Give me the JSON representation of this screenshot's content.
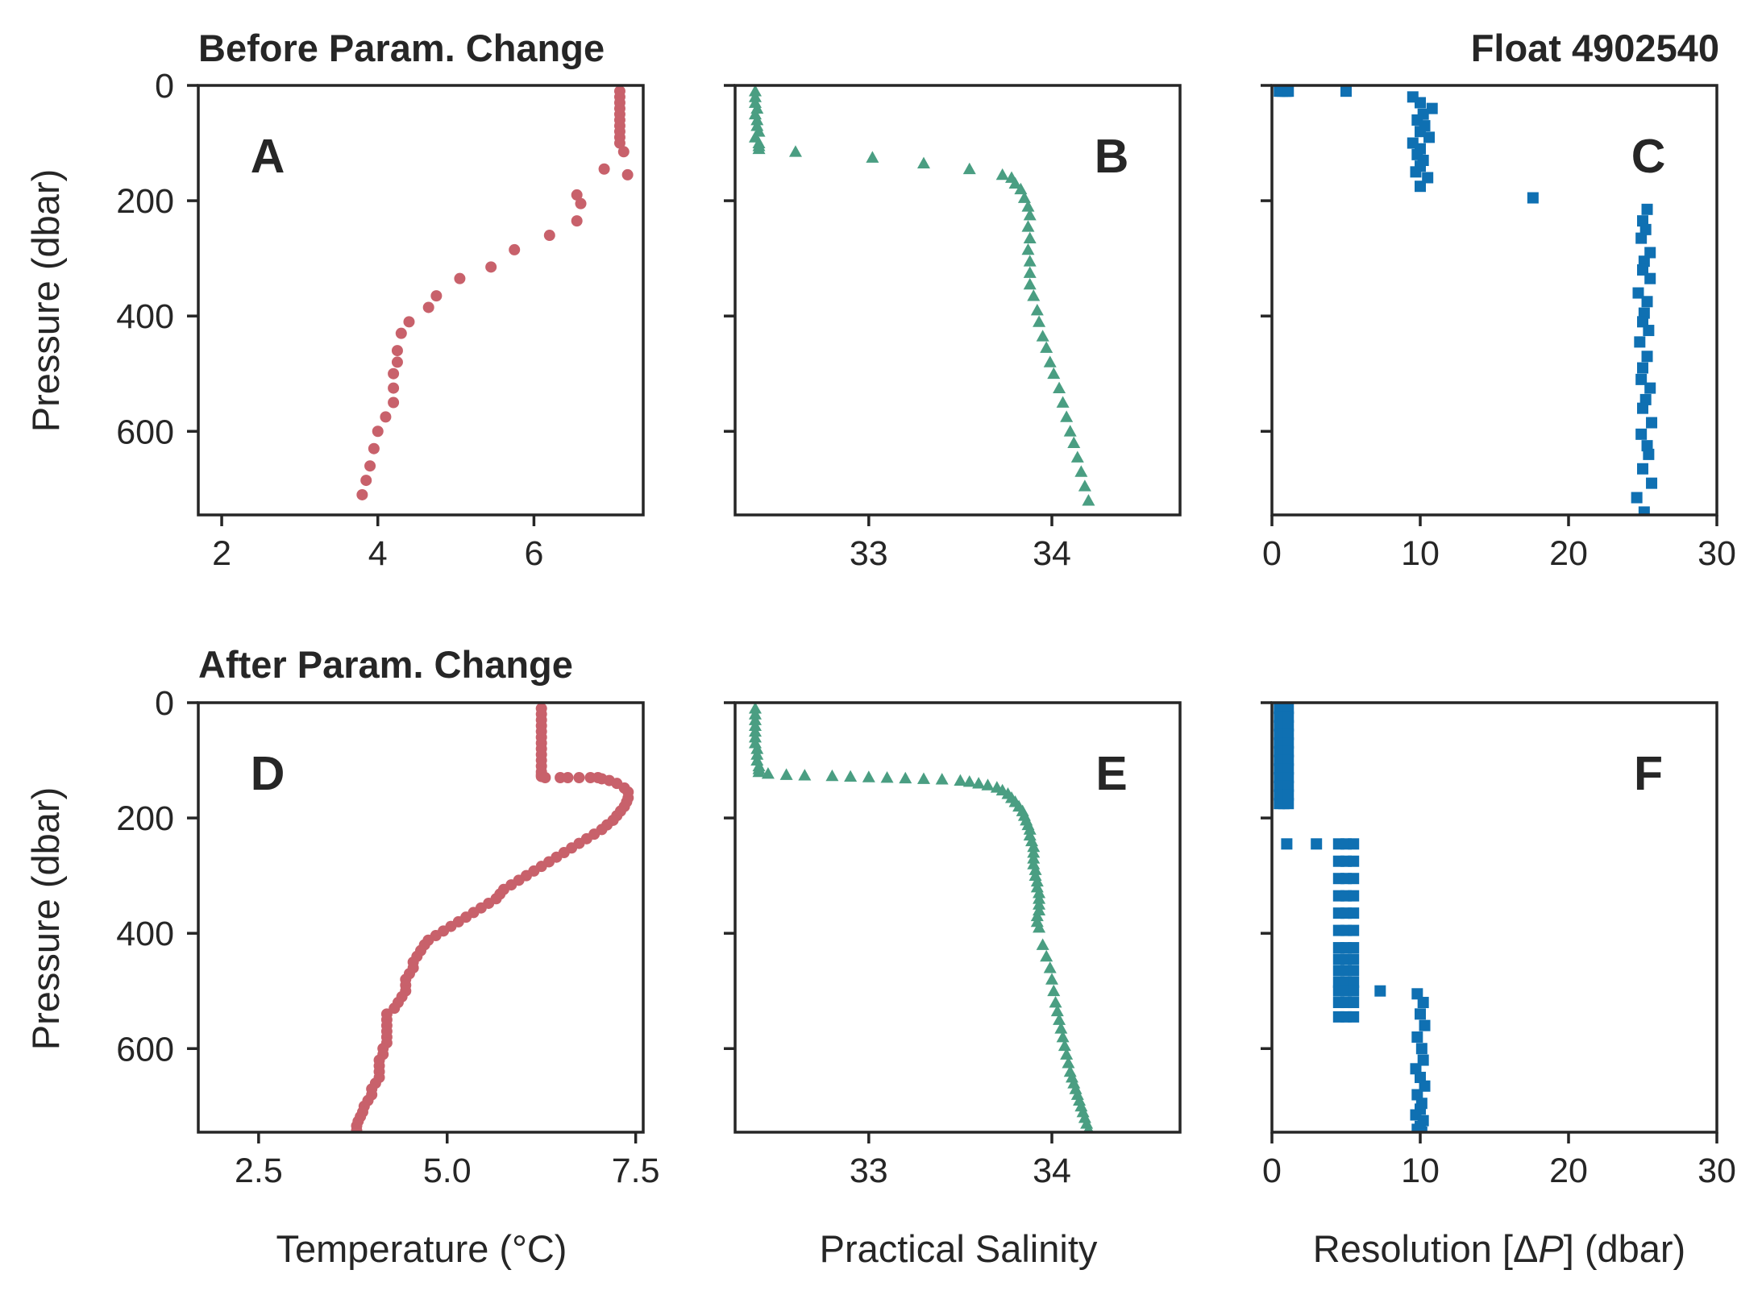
{
  "figure": {
    "top_left_title": "Before Param. Change",
    "top_right_title": "Float 4902540",
    "bottom_left_title": "After Param. Change"
  },
  "colors": {
    "temperature": "#c8616b",
    "salinity": "#4a9e82",
    "resolution": "#0f70b2",
    "axes": "#262626"
  },
  "markers": {
    "temperature": "circle",
    "salinity": "triangle",
    "resolution": "square"
  },
  "ylabel": "Pressure (dbar)",
  "xlabels": {
    "col1": "Temperature (°C)",
    "col2": "Practical Salinity",
    "col3_prefix": "Resolution [Δ",
    "col3_var": "P",
    "col3_suffix": "] (dbar)"
  },
  "chart_data": [
    {
      "id": "A",
      "panel_label": "A",
      "type": "scatter",
      "variable": "temperature",
      "xlim": [
        1.7,
        7.4
      ],
      "ylim": [
        745,
        0
      ],
      "y_inverted": true,
      "xticks": [
        2,
        4,
        6
      ],
      "xtick_labels": [
        "2",
        "4",
        "6"
      ],
      "yticks": [
        0,
        200,
        400,
        600
      ],
      "ytick_labels": [
        "0",
        "200",
        "400",
        "600"
      ],
      "x": [
        7.1,
        7.1,
        7.1,
        7.1,
        7.1,
        7.1,
        7.1,
        7.1,
        7.1,
        7.1,
        7.15,
        6.9,
        7.2,
        6.55,
        6.6,
        6.55,
        6.2,
        5.75,
        5.45,
        5.05,
        4.75,
        4.65,
        4.4,
        4.3,
        4.25,
        4.25,
        4.2,
        4.2,
        4.2,
        4.1,
        4.0,
        3.95,
        3.9,
        3.85,
        3.8
      ],
      "y": [
        10,
        20,
        30,
        40,
        50,
        60,
        70,
        80,
        90,
        100,
        115,
        145,
        155,
        190,
        205,
        235,
        260,
        285,
        315,
        335,
        365,
        385,
        410,
        430,
        460,
        480,
        500,
        525,
        550,
        575,
        600,
        630,
        660,
        685,
        710
      ]
    },
    {
      "id": "B",
      "panel_label": "B",
      "type": "scatter",
      "variable": "salinity",
      "xlim": [
        32.27,
        34.7
      ],
      "ylim": [
        745,
        0
      ],
      "y_inverted": true,
      "xticks": [
        33,
        34
      ],
      "xtick_labels": [
        "33",
        "34"
      ],
      "yticks": [
        0,
        200,
        400,
        600
      ],
      "ytick_labels": [
        "",
        "",
        "",
        ""
      ],
      "x": [
        32.38,
        32.38,
        32.38,
        32.39,
        32.38,
        32.39,
        32.39,
        32.4,
        32.38,
        32.4,
        32.4,
        32.4,
        32.6,
        33.02,
        33.3,
        33.55,
        33.73,
        33.78,
        33.8,
        33.83,
        33.85,
        33.87,
        33.88,
        33.87,
        33.88,
        33.87,
        33.88,
        33.88,
        33.88,
        33.9,
        33.92,
        33.93,
        33.95,
        33.97,
        33.99,
        34.01,
        34.04,
        34.06,
        34.08,
        34.1,
        34.12,
        34.14,
        34.16,
        34.18,
        34.2
      ],
      "y": [
        10,
        20,
        30,
        40,
        50,
        60,
        70,
        80,
        90,
        100,
        105,
        110,
        115,
        125,
        135,
        145,
        155,
        160,
        170,
        180,
        195,
        210,
        225,
        245,
        265,
        285,
        305,
        325,
        345,
        365,
        390,
        410,
        435,
        455,
        480,
        500,
        525,
        550,
        575,
        600,
        620,
        645,
        670,
        695,
        720
      ]
    },
    {
      "id": "C",
      "panel_label": "C",
      "type": "scatter",
      "variable": "resolution",
      "xlim": [
        0,
        30
      ],
      "ylim": [
        745,
        0
      ],
      "y_inverted": true,
      "xticks": [
        0,
        10,
        20,
        30
      ],
      "xtick_labels": [
        "0",
        "10",
        "20",
        "30"
      ],
      "yticks": [
        0,
        200,
        400,
        600
      ],
      "ytick_labels": [
        "",
        "",
        "",
        ""
      ],
      "x": [
        0.5,
        0.7,
        0.9,
        1.0,
        1.1,
        5.0,
        9.5,
        10.0,
        10.8,
        10.2,
        9.8,
        10.3,
        10.0,
        10.6,
        9.5,
        10.0,
        9.8,
        10.2,
        10.0,
        9.7,
        10.5,
        10.0,
        17.6,
        25.3,
        25.0,
        25.2,
        24.9,
        25.5,
        25.1,
        25.0,
        25.5,
        24.7,
        25.3,
        25.1,
        25.0,
        25.4,
        24.8,
        25.3,
        25.0,
        24.9,
        25.5,
        25.2,
        25.0,
        25.6,
        24.9,
        25.3,
        25.4,
        25.0,
        25.6,
        24.6,
        25.1
      ],
      "y": [
        10,
        10,
        10,
        10,
        10,
        10,
        20,
        30,
        40,
        50,
        60,
        70,
        80,
        90,
        100,
        110,
        120,
        130,
        140,
        150,
        160,
        175,
        195,
        215,
        235,
        250,
        265,
        290,
        305,
        320,
        335,
        360,
        375,
        395,
        410,
        425,
        445,
        470,
        490,
        510,
        525,
        545,
        560,
        585,
        605,
        625,
        640,
        665,
        690,
        715,
        740
      ]
    },
    {
      "id": "D",
      "panel_label": "D",
      "type": "scatter",
      "variable": "temperature",
      "xlim": [
        1.7,
        7.6
      ],
      "ylim": [
        745,
        0
      ],
      "y_inverted": true,
      "xticks": [
        2.5,
        5.0,
        7.5
      ],
      "xtick_labels": [
        "2.5",
        "5.0",
        "7.5"
      ],
      "yticks": [
        0,
        200,
        400,
        600
      ],
      "ytick_labels": [
        "0",
        "200",
        "400",
        "600"
      ],
      "x": [
        6.25,
        6.25,
        6.25,
        6.25,
        6.25,
        6.25,
        6.25,
        6.25,
        6.25,
        6.25,
        6.25,
        6.25,
        6.25,
        6.25,
        6.3,
        6.5,
        6.6,
        6.75,
        6.9,
        7.0,
        7.05,
        7.15,
        7.25,
        7.35,
        7.4,
        7.4,
        7.38,
        7.35,
        7.3,
        7.25,
        7.2,
        7.12,
        7.05,
        6.95,
        6.85,
        6.75,
        6.65,
        6.55,
        6.45,
        6.35,
        6.25,
        6.15,
        6.05,
        5.95,
        5.85,
        5.75,
        5.7,
        5.65,
        5.55,
        5.45,
        5.35,
        5.25,
        5.15,
        5.05,
        4.95,
        4.85,
        4.75,
        4.7,
        4.65,
        4.6,
        4.55,
        4.55,
        4.5,
        4.45,
        4.45,
        4.45,
        4.4,
        4.35,
        4.3,
        4.2,
        4.2,
        4.2,
        4.2,
        4.2,
        4.2,
        4.15,
        4.15,
        4.1,
        4.1,
        4.1,
        4.1,
        4.05,
        4.0,
        4.0,
        3.95,
        3.9,
        3.88,
        3.85,
        3.82,
        3.8,
        3.8
      ],
      "y": [
        10,
        20,
        30,
        40,
        50,
        60,
        70,
        80,
        90,
        100,
        110,
        120,
        125,
        128,
        130,
        130,
        130,
        130,
        130,
        130,
        132,
        135,
        140,
        148,
        155,
        165,
        172,
        180,
        188,
        196,
        204,
        212,
        220,
        228,
        236,
        244,
        252,
        260,
        268,
        276,
        284,
        292,
        300,
        308,
        316,
        324,
        332,
        340,
        348,
        356,
        364,
        372,
        380,
        388,
        396,
        404,
        412,
        420,
        430,
        440,
        450,
        460,
        470,
        480,
        490,
        500,
        510,
        520,
        530,
        540,
        550,
        560,
        570,
        580,
        590,
        600,
        610,
        620,
        630,
        640,
        650,
        660,
        670,
        680,
        690,
        700,
        710,
        718,
        726,
        734,
        742
      ]
    },
    {
      "id": "E",
      "panel_label": "E",
      "type": "scatter",
      "variable": "salinity",
      "xlim": [
        32.27,
        34.7
      ],
      "ylim": [
        745,
        0
      ],
      "y_inverted": true,
      "xticks": [
        33,
        34
      ],
      "xtick_labels": [
        "33",
        "34"
      ],
      "yticks": [
        0,
        200,
        400,
        600
      ],
      "ytick_labels": [
        "",
        "",
        "",
        ""
      ],
      "x": [
        32.38,
        32.38,
        32.38,
        32.38,
        32.38,
        32.38,
        32.38,
        32.39,
        32.39,
        32.39,
        32.4,
        32.4,
        32.4,
        32.45,
        32.55,
        32.65,
        32.8,
        32.9,
        33.0,
        33.1,
        33.2,
        33.3,
        33.4,
        33.5,
        33.55,
        33.6,
        33.65,
        33.7,
        33.73,
        33.76,
        33.78,
        33.8,
        33.82,
        33.84,
        33.85,
        33.86,
        33.87,
        33.88,
        33.88,
        33.89,
        33.9,
        33.9,
        33.9,
        33.9,
        33.91,
        33.91,
        33.92,
        33.92,
        33.93,
        33.93,
        33.93,
        33.93,
        33.92,
        33.92,
        33.93,
        33.95,
        33.97,
        33.99,
        34.0,
        34.01,
        34.02,
        34.03,
        34.04,
        34.05,
        34.06,
        34.07,
        34.08,
        34.09,
        34.1,
        34.11,
        34.12,
        34.13,
        34.14,
        34.15,
        34.16,
        34.17,
        34.18,
        34.19,
        34.2
      ],
      "y": [
        10,
        20,
        30,
        40,
        50,
        60,
        70,
        80,
        90,
        100,
        110,
        115,
        120,
        123,
        125,
        126,
        127,
        128,
        129,
        130,
        131,
        132,
        133,
        135,
        137,
        140,
        143,
        147,
        152,
        158,
        165,
        172,
        180,
        188,
        196,
        204,
        212,
        220,
        230,
        240,
        250,
        260,
        270,
        280,
        290,
        300,
        310,
        320,
        330,
        340,
        350,
        360,
        370,
        380,
        390,
        420,
        440,
        460,
        480,
        500,
        520,
        535,
        550,
        565,
        580,
        595,
        610,
        625,
        640,
        650,
        660,
        670,
        680,
        690,
        700,
        710,
        720,
        730,
        740
      ]
    },
    {
      "id": "F",
      "panel_label": "F",
      "type": "scatter",
      "variable": "resolution",
      "xlim": [
        0,
        30
      ],
      "ylim": [
        745,
        0
      ],
      "y_inverted": true,
      "xticks": [
        0,
        10,
        20,
        30
      ],
      "xtick_labels": [
        "0",
        "10",
        "20",
        "30"
      ],
      "yticks": [
        0,
        200,
        400,
        600
      ],
      "ytick_labels": [
        "",
        "",
        "",
        ""
      ],
      "x": [
        0.5,
        0.8,
        1.1,
        0.5,
        0.8,
        1.1,
        0.5,
        0.8,
        1.1,
        0.5,
        0.8,
        1.1,
        0.5,
        0.8,
        1.1,
        0.5,
        0.8,
        1.1,
        0.5,
        0.8,
        1.1,
        0.5,
        0.8,
        1.1,
        0.5,
        0.8,
        1.1,
        0.5,
        0.8,
        1.1,
        0.5,
        0.8,
        1.1,
        0.5,
        0.8,
        1.1,
        1.0,
        3.0,
        4.5,
        5.0,
        5.5,
        4.5,
        5.0,
        5.5,
        4.5,
        5.0,
        5.5,
        4.5,
        5.0,
        5.5,
        4.5,
        5.0,
        5.5,
        4.5,
        5.0,
        5.5,
        4.5,
        5.0,
        5.5,
        4.5,
        5.0,
        5.5,
        4.5,
        5.0,
        5.5,
        4.5,
        5.0,
        5.5,
        4.5,
        5.0,
        5.5,
        4.5,
        5.0,
        5.5,
        4.5,
        5.0,
        5.5,
        7.3,
        9.8,
        10.2,
        10.0,
        10.3,
        9.8,
        10.1,
        10.2,
        9.7,
        10.0,
        10.3,
        9.8,
        10.1,
        10.0,
        9.7,
        10.2,
        10.0,
        9.8,
        10.1
      ],
      "y": [
        10,
        10,
        10,
        25,
        25,
        25,
        40,
        40,
        40,
        55,
        55,
        55,
        70,
        70,
        70,
        85,
        85,
        85,
        100,
        100,
        100,
        115,
        115,
        115,
        130,
        130,
        130,
        145,
        145,
        145,
        160,
        160,
        160,
        175,
        175,
        175,
        245,
        245,
        245,
        245,
        245,
        275,
        275,
        275,
        305,
        305,
        305,
        335,
        335,
        335,
        365,
        365,
        365,
        395,
        395,
        395,
        425,
        425,
        425,
        445,
        445,
        445,
        465,
        465,
        465,
        485,
        485,
        485,
        500,
        500,
        500,
        520,
        520,
        520,
        545,
        545,
        545,
        500,
        505,
        520,
        540,
        560,
        580,
        600,
        620,
        635,
        650,
        665,
        680,
        695,
        705,
        715,
        725,
        735,
        740,
        745
      ]
    }
  ]
}
